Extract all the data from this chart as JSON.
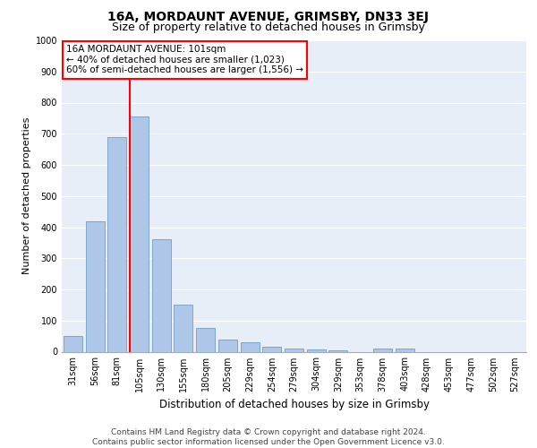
{
  "title": "16A, MORDAUNT AVENUE, GRIMSBY, DN33 3EJ",
  "subtitle": "Size of property relative to detached houses in Grimsby",
  "xlabel": "Distribution of detached houses by size in Grimsby",
  "ylabel": "Number of detached properties",
  "categories": [
    "31sqm",
    "56sqm",
    "81sqm",
    "105sqm",
    "130sqm",
    "155sqm",
    "180sqm",
    "205sqm",
    "229sqm",
    "254sqm",
    "279sqm",
    "304sqm",
    "329sqm",
    "353sqm",
    "378sqm",
    "403sqm",
    "428sqm",
    "453sqm",
    "477sqm",
    "502sqm",
    "527sqm"
  ],
  "values": [
    50,
    420,
    690,
    755,
    360,
    150,
    77,
    40,
    30,
    17,
    10,
    7,
    3,
    0,
    10,
    10,
    0,
    0,
    0,
    0,
    0
  ],
  "bar_color": "#aec6e8",
  "bar_edge_color": "#6090c0",
  "vline_color": "red",
  "vline_x_index": 2.575,
  "annotation_text": "16A MORDAUNT AVENUE: 101sqm\n← 40% of detached houses are smaller (1,023)\n60% of semi-detached houses are larger (1,556) →",
  "annotation_box_color": "white",
  "annotation_box_edge": "red",
  "ylim": [
    0,
    1000
  ],
  "yticks": [
    0,
    100,
    200,
    300,
    400,
    500,
    600,
    700,
    800,
    900,
    1000
  ],
  "background_color": "#e8eef8",
  "grid_color": "white",
  "footer": "Contains HM Land Registry data © Crown copyright and database right 2024.\nContains public sector information licensed under the Open Government Licence v3.0.",
  "title_fontsize": 10,
  "subtitle_fontsize": 9,
  "xlabel_fontsize": 8.5,
  "ylabel_fontsize": 8,
  "tick_fontsize": 7,
  "annotation_fontsize": 7.5,
  "footer_fontsize": 6.5
}
